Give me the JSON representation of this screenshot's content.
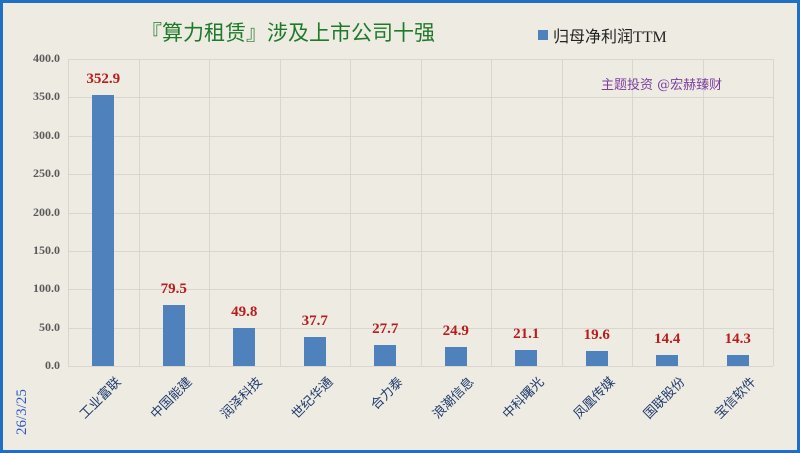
{
  "header": {
    "title": "『算力租赁』涉及上市公司十强",
    "legend_label": "归母净利润TTM",
    "watermark": "主题投资 @宏赫臻财",
    "date": "26/3/25"
  },
  "colors": {
    "bar": "#4f81bd",
    "data_label": "#b81c1c",
    "title": "#1e7a2a",
    "watermark": "#7b3f9e",
    "border": "#1f6fc4",
    "background": "#eeebe3"
  },
  "y_ticks": [
    "0.0",
    "50.0",
    "100.0",
    "150.0",
    "200.0",
    "250.0",
    "300.0",
    "350.0",
    "400.0"
  ],
  "chart_data": {
    "type": "bar",
    "title": "『算力租赁』涉及上市公司十强",
    "xlabel": "",
    "ylabel": "",
    "ylim": [
      0,
      400
    ],
    "grid": true,
    "legend_position": "top-right",
    "categories": [
      "工业富联",
      "中国能建",
      "润泽科技",
      "世纪华通",
      "合力泰",
      "浪潮信息",
      "中科曙光",
      "凤凰传媒",
      "国联股份",
      "宝信软件"
    ],
    "series": [
      {
        "name": "归母净利润TTM",
        "values": [
          352.9,
          79.5,
          49.8,
          37.7,
          27.7,
          24.9,
          21.1,
          19.6,
          14.4,
          14.3
        ]
      }
    ],
    "value_labels": [
      "352.9",
      "79.5",
      "49.8",
      "37.7",
      "27.7",
      "24.9",
      "21.1",
      "19.6",
      "14.4",
      "14.3"
    ],
    "annotations": [
      "主题投资 @宏赫臻财",
      "26/3/25"
    ]
  }
}
